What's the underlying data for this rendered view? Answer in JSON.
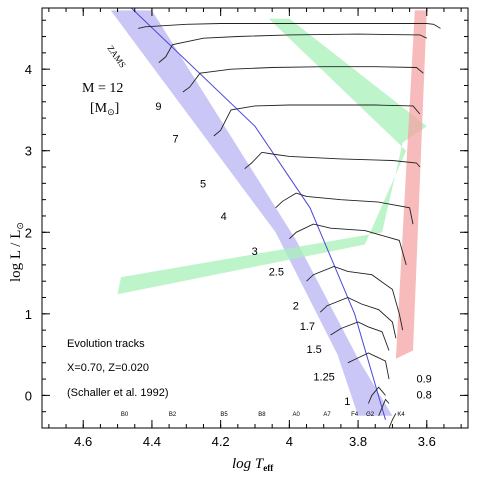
{
  "chart_data": {
    "type": "line",
    "xlabel": "log T",
    "xlabel_sub": "eff",
    "ylabel": "log L / L",
    "ylabel_sub": "⊙",
    "xlim": [
      4.72,
      3.48
    ],
    "ylim": [
      -0.4,
      4.75
    ],
    "x_ticks": [
      "4.6",
      "4.4",
      "4.2",
      "4",
      "3.8",
      "3.6"
    ],
    "x_tick_values": [
      4.6,
      4.4,
      4.2,
      4.0,
      3.8,
      3.6
    ],
    "y_ticks": [
      "0",
      "1",
      "2",
      "3",
      "4"
    ],
    "y_tick_values": [
      0,
      1,
      2,
      3,
      4
    ],
    "zams_label": "ZAMS",
    "mass_header": "M  =  12",
    "mass_unit_open": "[M",
    "mass_unit_sun": "⊙",
    "mass_unit_close": "]",
    "annotations": [
      "Evolution tracks",
      "X=0.70, Z=0.020",
      "(Schaller et al. 1992)"
    ],
    "spectral_types": [
      {
        "label": "B0",
        "x": 4.48
      },
      {
        "label": "B2",
        "x": 4.34
      },
      {
        "label": "B5",
        "x": 4.19
      },
      {
        "label": "B8",
        "x": 4.08
      },
      {
        "label": "A0",
        "x": 3.98
      },
      {
        "label": "A7",
        "x": 3.89
      },
      {
        "label": "F4",
        "x": 3.81
      },
      {
        "label": "G2",
        "x": 3.765
      },
      {
        "label": "K4",
        "x": 3.675
      }
    ],
    "zams_line": [
      [
        4.46,
        4.75
      ],
      [
        4.1,
        3.3
      ],
      [
        3.94,
        2.3
      ],
      [
        3.81,
        1.0
      ],
      [
        3.72,
        -0.3
      ]
    ],
    "tracks": [
      {
        "mass": "12",
        "label_x": null,
        "label_y": null,
        "points": [
          [
            4.44,
            4.5
          ],
          [
            4.42,
            4.52
          ],
          [
            4.3,
            4.55
          ],
          [
            4.2,
            4.56
          ],
          [
            4.1,
            4.56
          ],
          [
            3.9,
            4.56
          ],
          [
            3.75,
            4.56
          ],
          [
            3.6,
            4.56
          ],
          [
            3.58,
            4.55
          ],
          [
            3.56,
            4.5
          ]
        ]
      },
      {
        "mass": "9",
        "label_x": 4.39,
        "label_y": 3.5,
        "points": [
          [
            4.38,
            4.08
          ],
          [
            4.36,
            4.15
          ],
          [
            4.34,
            4.3
          ],
          [
            4.25,
            4.38
          ],
          [
            4.15,
            4.4
          ],
          [
            4.0,
            4.42
          ],
          [
            3.8,
            4.43
          ],
          [
            3.62,
            4.42
          ],
          [
            3.6,
            4.38
          ]
        ]
      },
      {
        "mass": "7",
        "label_x": 4.34,
        "label_y": 3.1,
        "points": [
          [
            4.31,
            3.72
          ],
          [
            4.29,
            3.78
          ],
          [
            4.26,
            3.95
          ],
          [
            4.17,
            4.0
          ],
          [
            4.05,
            4.02
          ],
          [
            3.9,
            4.03
          ],
          [
            3.75,
            4.03
          ],
          [
            3.63,
            4.02
          ],
          [
            3.61,
            3.95
          ]
        ]
      },
      {
        "mass": "5",
        "label_x": 4.26,
        "label_y": 2.55,
        "points": [
          [
            4.22,
            3.18
          ],
          [
            4.2,
            3.25
          ],
          [
            4.17,
            3.5
          ],
          [
            4.1,
            3.55
          ],
          [
            4.0,
            3.56
          ],
          [
            3.88,
            3.56
          ],
          [
            3.75,
            3.56
          ],
          [
            3.64,
            3.55
          ],
          [
            3.62,
            3.45
          ]
        ]
      },
      {
        "mass": "4",
        "label_x": 4.2,
        "label_y": 2.15,
        "points": [
          [
            4.13,
            2.78
          ],
          [
            4.11,
            2.85
          ],
          [
            4.08,
            2.98
          ],
          [
            4.05,
            2.96
          ],
          [
            4.0,
            2.93
          ],
          [
            3.85,
            2.9
          ],
          [
            3.7,
            2.88
          ],
          [
            3.63,
            2.85
          ],
          [
            3.62,
            2.8
          ]
        ]
      },
      {
        "mass": "3",
        "label_x": 4.11,
        "label_y": 1.72,
        "points": [
          [
            4.04,
            2.3
          ],
          [
            4.02,
            2.38
          ],
          [
            3.98,
            2.48
          ],
          [
            3.95,
            2.44
          ],
          [
            3.85,
            2.4
          ],
          [
            3.74,
            2.37
          ],
          [
            3.65,
            2.3
          ],
          [
            3.64,
            2.1
          ]
        ]
      },
      {
        "mass": "2.5",
        "label_x": 4.06,
        "label_y": 1.47,
        "points": [
          [
            4.0,
            1.92
          ],
          [
            3.98,
            2.0
          ],
          [
            3.93,
            2.1
          ],
          [
            3.88,
            2.05
          ],
          [
            3.78,
            2.02
          ],
          [
            3.68,
            1.9
          ],
          [
            3.66,
            1.6
          ]
        ]
      },
      {
        "mass": "2",
        "label_x": 3.99,
        "label_y": 1.05,
        "points": [
          [
            3.95,
            1.4
          ],
          [
            3.93,
            1.48
          ],
          [
            3.87,
            1.58
          ],
          [
            3.83,
            1.52
          ],
          [
            3.76,
            1.48
          ],
          [
            3.7,
            1.3
          ],
          [
            3.68,
            1.0
          ],
          [
            3.67,
            0.8
          ]
        ]
      },
      {
        "mass": "1.7",
        "label_x": 3.97,
        "label_y": 0.8,
        "points": [
          [
            3.91,
            1.02
          ],
          [
            3.89,
            1.1
          ],
          [
            3.83,
            1.2
          ],
          [
            3.79,
            1.12
          ],
          [
            3.74,
            1.05
          ],
          [
            3.7,
            0.9
          ],
          [
            3.69,
            0.7
          ]
        ]
      },
      {
        "mass": "1.5",
        "label_x": 3.95,
        "label_y": 0.52,
        "points": [
          [
            3.88,
            0.74
          ],
          [
            3.85,
            0.82
          ],
          [
            3.8,
            0.9
          ],
          [
            3.77,
            0.84
          ],
          [
            3.73,
            0.78
          ],
          [
            3.71,
            0.55
          ]
        ]
      },
      {
        "mass": "1.25",
        "label_x": 3.93,
        "label_y": 0.18,
        "points": [
          [
            3.83,
            0.4
          ],
          [
            3.8,
            0.46
          ],
          [
            3.77,
            0.52
          ],
          [
            3.75,
            0.48
          ],
          [
            3.72,
            0.42
          ],
          [
            3.71,
            0.2
          ]
        ]
      },
      {
        "mass": "1",
        "label_x": 3.84,
        "label_y": -0.12,
        "points": [
          [
            3.77,
            -0.1
          ],
          [
            3.76,
            0.0
          ],
          [
            3.74,
            0.1
          ],
          [
            3.73,
            0.05
          ],
          [
            3.72,
            0.0
          ]
        ]
      },
      {
        "mass": "0.9",
        "label_x": 3.63,
        "label_y": 0.16,
        "points": [
          [
            3.74,
            -0.25
          ],
          [
            3.73,
            -0.15
          ],
          [
            3.72,
            -0.05
          ],
          [
            3.71,
            -0.1
          ]
        ]
      },
      {
        "mass": "0.8",
        "label_x": 3.63,
        "label_y": -0.04,
        "points": [
          [
            3.71,
            -0.4
          ],
          [
            3.7,
            -0.3
          ],
          [
            3.69,
            -0.22
          ]
        ]
      }
    ],
    "bands": [
      {
        "name": "main-sequence",
        "color": "#b8b4f4",
        "polygon": [
          [
            4.52,
            4.72
          ],
          [
            4.4,
            4.72
          ],
          [
            3.98,
            1.9
          ],
          [
            3.8,
            0.45
          ],
          [
            3.7,
            -0.25
          ],
          [
            3.8,
            -0.25
          ],
          [
            3.86,
            0.5
          ],
          [
            4.04,
            2.0
          ]
        ]
      },
      {
        "name": "hertzsprung-gap",
        "color": "#a8f0b8",
        "polygon": [
          [
            4.06,
            4.62
          ],
          [
            4.0,
            4.62
          ],
          [
            3.6,
            3.3
          ],
          [
            3.67,
            3.1
          ],
          [
            3.73,
            2.0
          ],
          [
            4.49,
            1.45
          ],
          [
            4.5,
            1.24
          ],
          [
            3.78,
            1.85
          ],
          [
            3.66,
            3.0
          ]
        ]
      },
      {
        "name": "red-giant",
        "color": "#f4a4a4",
        "polygon": [
          [
            3.635,
            4.72
          ],
          [
            3.6,
            4.72
          ],
          [
            3.64,
            0.55
          ],
          [
            3.69,
            0.45
          ]
        ]
      }
    ]
  }
}
